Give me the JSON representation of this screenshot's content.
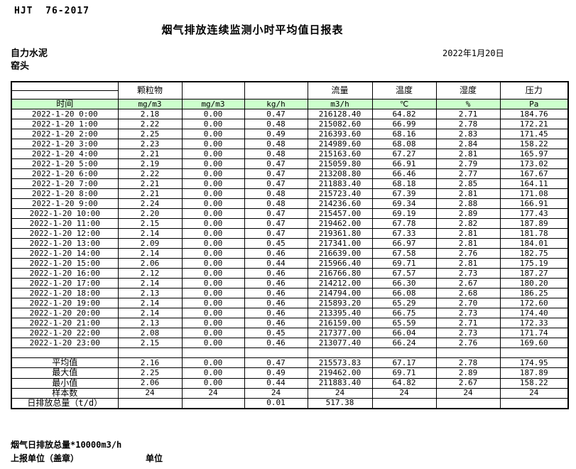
{
  "doc": {
    "standard": "HJT  76-2017",
    "title": "烟气排放连续监测小时平均值日报表",
    "company": "自力水泥",
    "station": "窑头",
    "date": "2022年1月20日"
  },
  "table": {
    "group_headers": [
      "",
      "颗粒物",
      "",
      "",
      "流量",
      "温度",
      "湿度",
      "压力"
    ],
    "unit_row": {
      "time_label": "时间",
      "units": [
        "mg/m3",
        "mg/m3",
        "kg/h",
        "m3/h",
        "℃",
        "%",
        "Pa"
      ]
    },
    "rows": [
      {
        "time": "2022-1-20  0:00",
        "values": [
          "2.18",
          "0.00",
          "0.47",
          "216128.40",
          "64.82",
          "2.71",
          "184.76"
        ]
      },
      {
        "time": "2022-1-20  1:00",
        "values": [
          "2.22",
          "0.00",
          "0.48",
          "215082.60",
          "66.99",
          "2.78",
          "172.21"
        ]
      },
      {
        "time": "2022-1-20  2:00",
        "values": [
          "2.25",
          "0.00",
          "0.49",
          "216393.60",
          "68.16",
          "2.83",
          "171.45"
        ]
      },
      {
        "time": "2022-1-20  3:00",
        "values": [
          "2.23",
          "0.00",
          "0.48",
          "214989.60",
          "68.08",
          "2.84",
          "158.22"
        ]
      },
      {
        "time": "2022-1-20  4:00",
        "values": [
          "2.21",
          "0.00",
          "0.48",
          "215163.60",
          "67.27",
          "2.81",
          "165.97"
        ]
      },
      {
        "time": "2022-1-20  5:00",
        "values": [
          "2.19",
          "0.00",
          "0.47",
          "215059.80",
          "66.91",
          "2.79",
          "173.02"
        ]
      },
      {
        "time": "2022-1-20  6:00",
        "values": [
          "2.22",
          "0.00",
          "0.47",
          "213208.80",
          "66.46",
          "2.77",
          "167.67"
        ]
      },
      {
        "time": "2022-1-20  7:00",
        "values": [
          "2.21",
          "0.00",
          "0.47",
          "211883.40",
          "68.18",
          "2.85",
          "164.11"
        ]
      },
      {
        "time": "2022-1-20  8:00",
        "values": [
          "2.21",
          "0.00",
          "0.48",
          "215723.40",
          "67.39",
          "2.81",
          "171.08"
        ]
      },
      {
        "time": "2022-1-20  9:00",
        "values": [
          "2.24",
          "0.00",
          "0.48",
          "214236.60",
          "69.34",
          "2.88",
          "166.91"
        ]
      },
      {
        "time": "2022-1-20 10:00",
        "values": [
          "2.20",
          "0.00",
          "0.47",
          "215457.00",
          "69.19",
          "2.89",
          "177.43"
        ]
      },
      {
        "time": "2022-1-20 11:00",
        "values": [
          "2.15",
          "0.00",
          "0.47",
          "219462.00",
          "67.78",
          "2.82",
          "187.89"
        ]
      },
      {
        "time": "2022-1-20 12:00",
        "values": [
          "2.14",
          "0.00",
          "0.47",
          "219361.80",
          "67.33",
          "2.81",
          "181.78"
        ]
      },
      {
        "time": "2022-1-20 13:00",
        "values": [
          "2.09",
          "0.00",
          "0.45",
          "217341.00",
          "66.97",
          "2.81",
          "184.01"
        ]
      },
      {
        "time": "2022-1-20 14:00",
        "values": [
          "2.14",
          "0.00",
          "0.46",
          "216639.00",
          "67.58",
          "2.76",
          "182.75"
        ]
      },
      {
        "time": "2022-1-20 15:00",
        "values": [
          "2.06",
          "0.00",
          "0.44",
          "215966.40",
          "69.71",
          "2.81",
          "175.19"
        ]
      },
      {
        "time": "2022-1-20 16:00",
        "values": [
          "2.12",
          "0.00",
          "0.46",
          "216766.80",
          "67.57",
          "2.73",
          "187.27"
        ]
      },
      {
        "time": "2022-1-20 17:00",
        "values": [
          "2.14",
          "0.00",
          "0.46",
          "214212.00",
          "66.30",
          "2.67",
          "180.20"
        ]
      },
      {
        "time": "2022-1-20 18:00",
        "values": [
          "2.13",
          "0.00",
          "0.46",
          "214794.00",
          "66.08",
          "2.68",
          "186.25"
        ]
      },
      {
        "time": "2022-1-20 19:00",
        "values": [
          "2.14",
          "0.00",
          "0.46",
          "215893.20",
          "65.29",
          "2.70",
          "172.60"
        ]
      },
      {
        "time": "2022-1-20 20:00",
        "values": [
          "2.14",
          "0.00",
          "0.46",
          "213395.40",
          "66.75",
          "2.73",
          "174.40"
        ]
      },
      {
        "time": "2022-1-20 21:00",
        "values": [
          "2.13",
          "0.00",
          "0.46",
          "216159.00",
          "65.59",
          "2.71",
          "172.33"
        ]
      },
      {
        "time": "2022-1-20 22:00",
        "values": [
          "2.08",
          "0.00",
          "0.45",
          "217377.00",
          "66.04",
          "2.73",
          "171.74"
        ]
      },
      {
        "time": "2022-1-20 23:00",
        "values": [
          "2.15",
          "0.00",
          "0.46",
          "213077.40",
          "66.24",
          "2.76",
          "169.60"
        ]
      }
    ],
    "summary": [
      {
        "label": "平均值",
        "values": [
          "2.16",
          "0.00",
          "0.47",
          "215573.83",
          "67.17",
          "2.78",
          "174.95"
        ]
      },
      {
        "label": "最大值",
        "values": [
          "2.25",
          "0.00",
          "0.49",
          "219462.00",
          "69.71",
          "2.89",
          "187.89"
        ]
      },
      {
        "label": "最小值",
        "values": [
          "2.06",
          "0.00",
          "0.44",
          "211883.40",
          "64.82",
          "2.67",
          "158.22"
        ]
      },
      {
        "label": "样本数",
        "values": [
          "24",
          "24",
          "24",
          "24",
          "24",
          "24",
          "24"
        ]
      },
      {
        "label": "日排放总量（t/d）",
        "values": [
          "",
          "",
          "0.01",
          "517.38",
          "",
          "",
          ""
        ]
      }
    ]
  },
  "footer": {
    "note": "烟气日排放总量*10000m3/h",
    "report_unit_label": "上报单位（盖章）",
    "unit_label": "单位"
  },
  "colors": {
    "header_green": "#ccffcc",
    "border": "#000000"
  }
}
